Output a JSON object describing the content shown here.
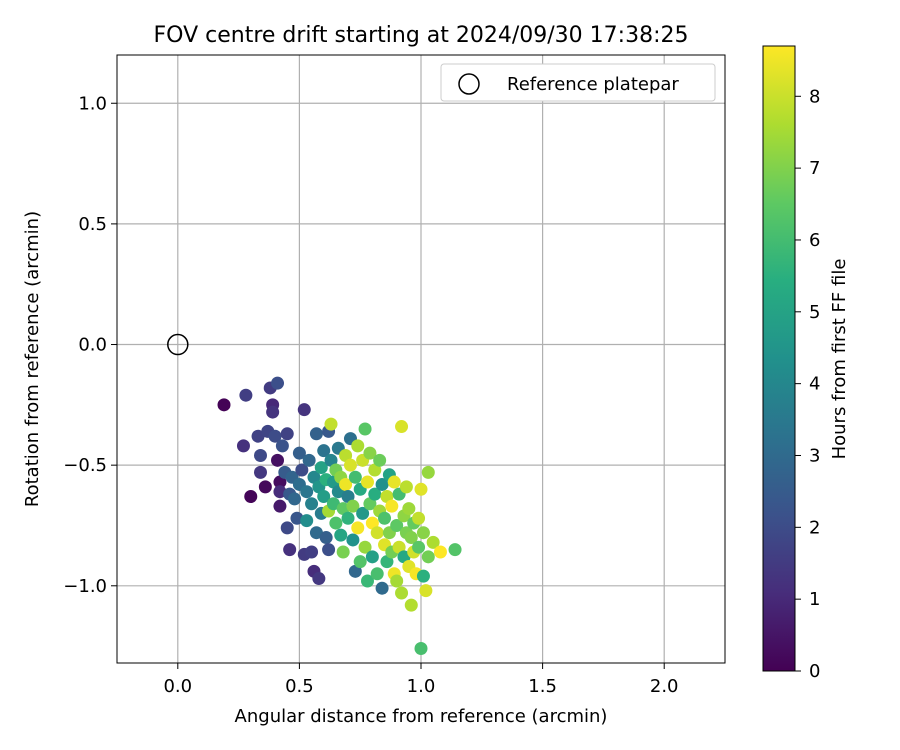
{
  "chart_data": {
    "type": "scatter",
    "title": "FOV centre drift starting at 2024/09/30 17:38:25",
    "xlabel": "Angular distance from reference (arcmin)",
    "ylabel": "Rotation from reference (arcmin)",
    "xlim": [
      -0.25,
      2.25
    ],
    "ylim": [
      -1.32,
      1.2
    ],
    "xticks": [
      0.0,
      0.5,
      1.0,
      1.5,
      2.0
    ],
    "xtick_labels": [
      "0.0",
      "0.5",
      "1.0",
      "1.5",
      "2.0"
    ],
    "yticks": [
      1.0,
      0.5,
      0.0,
      -0.5,
      -1.0
    ],
    "ytick_labels": [
      "1.0",
      "0.5",
      "0.0",
      "−0.5",
      "−1.0"
    ],
    "grid": true,
    "colormap": "viridis",
    "colorbar": {
      "label": "Hours from first FF file",
      "min": 0,
      "max": 8.7,
      "ticks": [
        0,
        1,
        2,
        3,
        4,
        5,
        6,
        7,
        8
      ],
      "tick_labels": [
        "0",
        "1",
        "2",
        "3",
        "4",
        "5",
        "6",
        "7",
        "8"
      ]
    },
    "reference_point": {
      "x": 0.0,
      "y": 0.0,
      "label": "Reference platepar"
    },
    "legend": {
      "placement": "top-right",
      "entries": [
        "Reference platepar"
      ]
    },
    "points": [
      [
        0.19,
        -0.25,
        0.05
      ],
      [
        0.28,
        -0.21,
        1.6
      ],
      [
        0.27,
        -0.42,
        1.2
      ],
      [
        0.3,
        -0.63,
        0.1
      ],
      [
        0.33,
        -0.38,
        1.7
      ],
      [
        0.34,
        -0.46,
        1.9
      ],
      [
        0.34,
        -0.53,
        1.4
      ],
      [
        0.36,
        -0.59,
        0.2
      ],
      [
        0.37,
        -0.36,
        1.8
      ],
      [
        0.38,
        -0.18,
        1.5
      ],
      [
        0.39,
        -0.25,
        1.0
      ],
      [
        0.39,
        -0.28,
        1.3
      ],
      [
        0.4,
        -0.38,
        2.0
      ],
      [
        0.41,
        -0.16,
        2.1
      ],
      [
        0.41,
        -0.48,
        0.4
      ],
      [
        0.42,
        -0.57,
        0.3
      ],
      [
        0.42,
        -0.61,
        1.1
      ],
      [
        0.42,
        -0.67,
        0.6
      ],
      [
        0.43,
        -0.42,
        2.2
      ],
      [
        0.44,
        -0.53,
        2.5
      ],
      [
        0.45,
        -0.37,
        1.7
      ],
      [
        0.45,
        -0.76,
        1.9
      ],
      [
        0.46,
        -0.85,
        1.2
      ],
      [
        0.46,
        -0.62,
        2.4
      ],
      [
        0.47,
        -0.55,
        2.8
      ],
      [
        0.48,
        -0.64,
        2.9
      ],
      [
        0.49,
        -0.72,
        2.3
      ],
      [
        0.5,
        -0.58,
        3.1
      ],
      [
        0.5,
        -0.45,
        2.6
      ],
      [
        0.51,
        -0.52,
        2.0
      ],
      [
        0.52,
        -0.87,
        1.5
      ],
      [
        0.52,
        -0.27,
        1.3
      ],
      [
        0.53,
        -0.61,
        3.4
      ],
      [
        0.53,
        -0.73,
        4.2
      ],
      [
        0.54,
        -0.48,
        2.9
      ],
      [
        0.55,
        -0.66,
        3.8
      ],
      [
        0.55,
        -0.86,
        1.6
      ],
      [
        0.56,
        -0.94,
        1.1
      ],
      [
        0.56,
        -0.55,
        4.0
      ],
      [
        0.57,
        -0.37,
        2.7
      ],
      [
        0.57,
        -0.78,
        3.0
      ],
      [
        0.58,
        -0.97,
        1.4
      ],
      [
        0.58,
        -0.59,
        4.5
      ],
      [
        0.59,
        -0.7,
        3.6
      ],
      [
        0.59,
        -0.51,
        5.0
      ],
      [
        0.6,
        -0.63,
        4.8
      ],
      [
        0.6,
        -0.44,
        3.3
      ],
      [
        0.61,
        -0.56,
        5.5
      ],
      [
        0.61,
        -0.8,
        2.6
      ],
      [
        0.62,
        -0.85,
        2.1
      ],
      [
        0.62,
        -0.36,
        2.4
      ],
      [
        0.62,
        -0.69,
        7.5
      ],
      [
        0.63,
        -0.33,
        7.9
      ],
      [
        0.63,
        -0.48,
        3.9
      ],
      [
        0.64,
        -0.57,
        4.7
      ],
      [
        0.64,
        -0.66,
        5.9
      ],
      [
        0.65,
        -0.74,
        6.2
      ],
      [
        0.65,
        -0.52,
        6.8
      ],
      [
        0.66,
        -0.61,
        4.1
      ],
      [
        0.66,
        -0.43,
        3.5
      ],
      [
        0.67,
        -0.79,
        5.1
      ],
      [
        0.67,
        -0.55,
        7.2
      ],
      [
        0.68,
        -0.68,
        6.5
      ],
      [
        0.68,
        -0.86,
        6.9
      ],
      [
        0.69,
        -0.46,
        7.8
      ],
      [
        0.69,
        -0.58,
        8.5
      ],
      [
        0.7,
        -0.72,
        5.6
      ],
      [
        0.7,
        -0.63,
        3.7
      ],
      [
        0.71,
        -0.5,
        8.2
      ],
      [
        0.71,
        -0.39,
        3.2
      ],
      [
        0.72,
        -0.67,
        7.0
      ],
      [
        0.72,
        -0.81,
        4.4
      ],
      [
        0.73,
        -0.94,
        2.9
      ],
      [
        0.73,
        -0.55,
        6.0
      ],
      [
        0.74,
        -0.42,
        7.6
      ],
      [
        0.74,
        -0.76,
        8.6
      ],
      [
        0.75,
        -0.6,
        5.3
      ],
      [
        0.75,
        -0.9,
        6.3
      ],
      [
        0.76,
        -0.48,
        8.0
      ],
      [
        0.76,
        -0.7,
        4.6
      ],
      [
        0.77,
        -0.35,
        6.4
      ],
      [
        0.77,
        -0.84,
        7.3
      ],
      [
        0.78,
        -0.57,
        8.4
      ],
      [
        0.78,
        -0.98,
        5.8
      ],
      [
        0.79,
        -0.66,
        6.6
      ],
      [
        0.79,
        -0.45,
        7.1
      ],
      [
        0.8,
        -0.74,
        8.7
      ],
      [
        0.8,
        -0.88,
        4.9
      ],
      [
        0.81,
        -0.52,
        7.7
      ],
      [
        0.81,
        -0.62,
        5.4
      ],
      [
        0.82,
        -0.95,
        6.1
      ],
      [
        0.82,
        -0.78,
        8.1
      ],
      [
        0.83,
        -0.48,
        6.7
      ],
      [
        0.83,
        -0.69,
        7.4
      ],
      [
        0.84,
        -1.01,
        3.0
      ],
      [
        0.84,
        -0.58,
        4.3
      ],
      [
        0.85,
        -0.83,
        8.3
      ],
      [
        0.85,
        -0.72,
        6.2
      ],
      [
        0.86,
        -0.63,
        7.9
      ],
      [
        0.86,
        -0.9,
        5.7
      ],
      [
        0.87,
        -0.54,
        5.0
      ],
      [
        0.87,
        -0.78,
        7.0
      ],
      [
        0.88,
        -0.86,
        6.8
      ],
      [
        0.88,
        -0.67,
        8.6
      ],
      [
        0.89,
        -0.95,
        8.5
      ],
      [
        0.89,
        -0.57,
        8.4
      ],
      [
        0.9,
        -0.75,
        6.5
      ],
      [
        0.9,
        -0.98,
        7.5
      ],
      [
        0.91,
        -0.62,
        6.0
      ],
      [
        0.91,
        -0.84,
        8.0
      ],
      [
        0.92,
        -0.34,
        8.2
      ],
      [
        0.92,
        -1.03,
        7.6
      ],
      [
        0.93,
        -0.71,
        7.2
      ],
      [
        0.93,
        -0.88,
        5.2
      ],
      [
        0.94,
        -0.59,
        7.8
      ],
      [
        0.94,
        -0.78,
        6.9
      ],
      [
        0.95,
        -0.92,
        8.3
      ],
      [
        0.95,
        -0.68,
        7.4
      ],
      [
        0.96,
        -1.08,
        7.7
      ],
      [
        0.96,
        -0.8,
        7.0
      ],
      [
        0.97,
        -0.74,
        6.6
      ],
      [
        0.97,
        -0.86,
        8.1
      ],
      [
        0.98,
        -0.95,
        8.6
      ],
      [
        0.99,
        -0.72,
        7.9
      ],
      [
        0.99,
        -0.84,
        6.4
      ],
      [
        1.0,
        -0.6,
        8.3
      ],
      [
        1.0,
        -1.26,
        6.1
      ],
      [
        1.01,
        -0.96,
        5.5
      ],
      [
        1.01,
        -0.78,
        7.1
      ],
      [
        1.02,
        -1.02,
        8.2
      ],
      [
        1.03,
        -0.53,
        7.3
      ],
      [
        1.03,
        -0.88,
        6.8
      ],
      [
        1.05,
        -0.82,
        7.6
      ],
      [
        1.08,
        -0.86,
        8.7
      ],
      [
        1.14,
        -0.85,
        6.3
      ]
    ]
  }
}
